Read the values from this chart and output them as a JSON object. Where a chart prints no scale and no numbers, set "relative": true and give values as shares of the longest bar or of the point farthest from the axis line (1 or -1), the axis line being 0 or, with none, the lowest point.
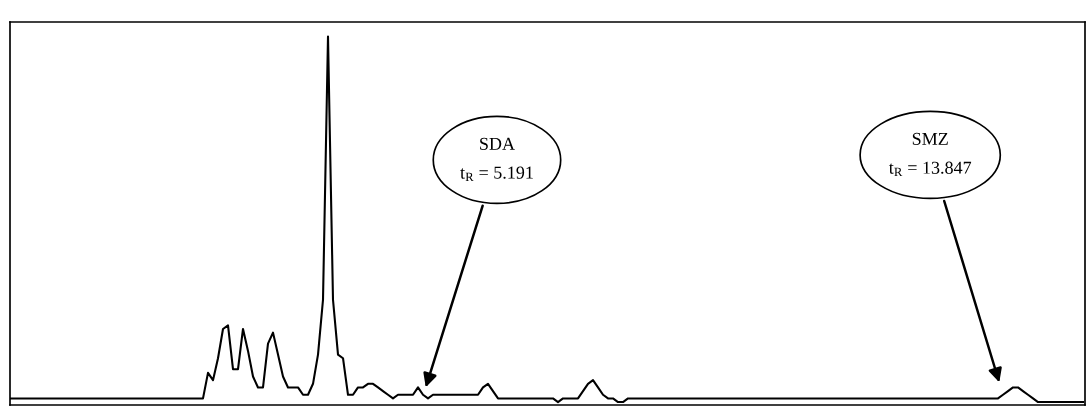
{
  "chart_data": {
    "type": "line",
    "relative": true,
    "tick_labels": false,
    "marker": "none",
    "line_style": "solid",
    "categories": [
      null,
      null,
      null,
      null,
      null,
      null,
      null,
      null,
      null,
      null,
      null,
      null,
      null,
      null,
      null,
      null,
      null,
      null,
      null,
      null,
      null,
      null,
      null,
      null,
      null,
      null,
      null,
      null,
      null,
      null,
      null,
      null,
      null,
      null,
      null,
      null,
      null,
      null,
      null,
      null,
      null,
      null,
      null,
      null,
      null,
      null,
      null,
      null,
      null,
      null,
      null,
      null,
      null,
      null,
      null,
      null,
      null,
      null,
      null,
      null,
      null,
      null,
      null,
      null,
      null,
      null,
      null,
      null,
      null,
      null,
      null,
      null,
      null,
      null,
      null,
      null,
      null,
      null,
      null,
      null,
      null,
      null,
      null,
      null,
      null,
      null,
      null,
      null,
      null,
      null,
      null,
      null,
      null,
      null,
      null,
      null,
      null,
      null,
      null,
      null,
      null,
      null,
      null,
      null,
      null,
      null,
      null,
      null,
      null,
      null,
      null,
      null,
      null,
      null,
      null,
      null,
      null,
      null,
      null,
      null,
      null,
      null,
      null,
      null,
      null,
      null,
      null,
      null,
      null,
      null,
      null,
      null,
      null,
      null,
      null,
      null,
      null,
      null,
      null,
      null,
      null,
      null,
      null,
      null,
      null,
      null,
      null,
      null,
      null,
      null,
      null,
      null,
      null,
      null,
      null,
      null,
      null,
      null,
      null,
      null,
      null,
      null,
      null,
      null,
      null,
      null,
      null,
      null,
      null,
      null,
      null,
      null,
      null,
      null,
      null,
      null,
      null,
      null,
      null,
      null,
      null,
      null,
      null,
      null,
      null,
      null,
      null,
      null,
      null,
      null,
      null,
      null,
      null,
      null,
      null,
      null,
      null,
      null,
      null,
      null,
      null,
      null,
      null,
      null,
      null,
      null,
      null,
      null,
      null,
      null,
      null,
      null,
      null,
      null,
      null,
      null
    ],
    "series": [
      {
        "color": "#000000",
        "values": [
          0.01,
          0.01,
          0.01,
          0.01,
          0.01,
          0.01,
          0.01,
          0.01,
          0.01,
          0.01,
          0.01,
          0.01,
          0.01,
          0.01,
          0.01,
          0.01,
          0.01,
          0.01,
          0.01,
          0.01,
          0.01,
          0.01,
          0.01,
          0.01,
          0.01,
          0.01,
          0.01,
          0.01,
          0.01,
          0.01,
          0.01,
          0.01,
          0.01,
          0.01,
          0.01,
          0.01,
          0.01,
          0.01,
          0.01,
          0.01,
          0.08,
          0.06,
          0.12,
          0.2,
          0.21,
          0.09,
          0.09,
          0.2,
          0.14,
          0.07,
          0.04,
          0.04,
          0.16,
          0.19,
          0.13,
          0.07,
          0.04,
          0.04,
          0.04,
          0.02,
          0.02,
          0.05,
          0.13,
          0.28,
          1.0,
          0.28,
          0.13,
          0.12,
          0.02,
          0.02,
          0.04,
          0.04,
          0.05,
          0.05,
          0.04,
          0.03,
          0.02,
          0.01,
          0.02,
          0.02,
          0.02,
          0.02,
          0.04,
          0.02,
          0.01,
          0.02,
          0.02,
          0.02,
          0.02,
          0.02,
          0.02,
          0.02,
          0.02,
          0.02,
          0.02,
          0.04,
          0.05,
          0.03,
          0.01,
          0.01,
          0.01,
          0.01,
          0.01,
          0.01,
          0.01,
          0.01,
          0.01,
          0.01,
          0.01,
          0.01,
          0,
          0.01,
          0.01,
          0.01,
          0.01,
          0.03,
          0.05,
          0.06,
          0.04,
          0.02,
          0.01,
          0.01,
          0,
          0,
          0.01,
          0.01,
          0.01,
          0.01,
          0.01,
          0.01,
          0.01,
          0.01,
          0.01,
          0.01,
          0.01,
          0.01,
          0.01,
          0.01,
          0.01,
          0.01,
          0.01,
          0.01,
          0.01,
          0.01,
          0.01,
          0.01,
          0.01,
          0.01,
          0.01,
          0.01,
          0.01,
          0.01,
          0.01,
          0.01,
          0.01,
          0.01,
          0.01,
          0.01,
          0.01,
          0.01,
          0.01,
          0.01,
          0.01,
          0.01,
          0.01,
          0.01,
          0.01,
          0.01,
          0.01,
          0.01,
          0.01,
          0.01,
          0.01,
          0.01,
          0.01,
          0.01,
          0.01,
          0.01,
          0.01,
          0.01,
          0.01,
          0.01,
          0.01,
          0.01,
          0.01,
          0.01,
          0.01,
          0.01,
          0.01,
          0.01,
          0.01,
          0.01,
          0.01,
          0.01,
          0.01,
          0.01,
          0.01,
          0.01,
          0.01,
          0.02,
          0.03,
          0.04,
          0.04,
          0.03,
          0.02,
          0.01,
          0,
          0,
          0,
          0,
          0,
          0,
          0,
          0,
          0,
          0
        ]
      }
    ],
    "annotations": [
      "SDA\nt$_{R}$ = 5.191",
      "SMZ\nt$_{R}$ = 13.847"
    ]
  }
}
